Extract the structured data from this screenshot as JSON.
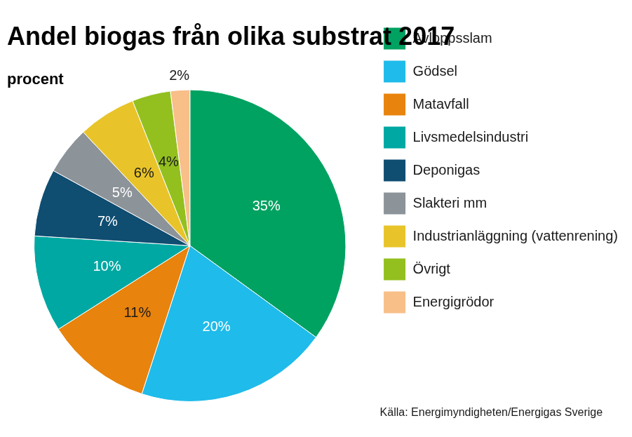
{
  "chart_data": {
    "type": "pie",
    "title": "Andel biogas från olika substrat 2017",
    "subtitle": "procent",
    "source": "Källa: Energimyndigheten/Energigas Sverige",
    "categories": [
      "Avloppsslam",
      "Gödsel",
      "Matavfall",
      "Livsmedelsindustri",
      "Deponigas",
      "Slakteri mm",
      "Industrianläggning (vattenrening)",
      "Övrigt",
      "Energigrödor"
    ],
    "values": [
      35,
      20,
      11,
      10,
      7,
      5,
      6,
      4,
      2
    ],
    "value_labels": [
      "35%",
      "20%",
      "11%",
      "10%",
      "7%",
      "5%",
      "6%",
      "4%",
      "2%"
    ],
    "colors": [
      "#00a261",
      "#1fbbea",
      "#e8830d",
      "#00a8a3",
      "#0f4d71",
      "#8c9399",
      "#e8c42a",
      "#93c01f",
      "#f8bf88"
    ],
    "legend": "right",
    "data_labels": true
  }
}
